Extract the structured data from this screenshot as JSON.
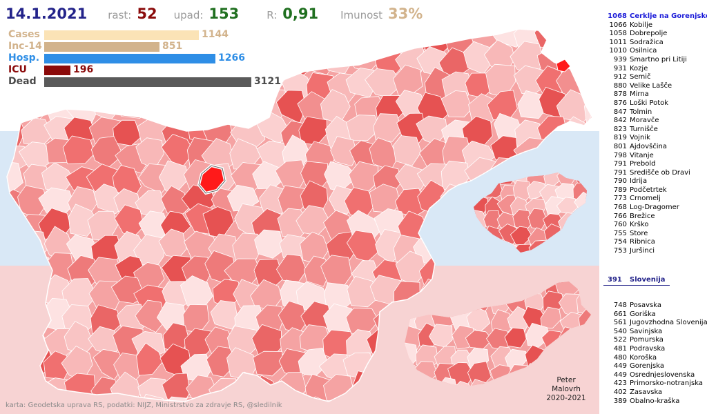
{
  "header": {
    "date": "14.1.2021",
    "rast_label": "rast:",
    "rast_value": "52",
    "upad_label": "upad:",
    "upad_value": "153",
    "r_label": "R:",
    "r_value": "0,91",
    "imunost_label": "Imunost",
    "imunost_value": "33%"
  },
  "stats": [
    {
      "label": "Cases",
      "value": "1144",
      "numeric": 1144,
      "color": "#fbe3b6",
      "label_color": "#d2b38c",
      "num_color": "#d2b38c"
    },
    {
      "label": "Inc-14",
      "value": "851",
      "numeric": 851,
      "color": "#d2b38c",
      "label_color": "#d2b38c",
      "num_color": "#d2b38c"
    },
    {
      "label": "Hosp.",
      "value": "1266",
      "numeric": 1266,
      "color": "#2e8ee6",
      "label_color": "#2e8ee6",
      "num_color": "#2e8ee6"
    },
    {
      "label": "ICU",
      "value": "196",
      "numeric": 196,
      "color": "#8b0a0a",
      "label_color": "#8b0a0a",
      "num_color": "#8b0a0a"
    },
    {
      "label": "Dead",
      "value": "3121",
      "numeric": 3121,
      "color": "#5a5a5a",
      "label_color": "#4a4a4a",
      "num_color": "#4a4a4a"
    }
  ],
  "municipalities": [
    {
      "value": "1068",
      "name": "Cerklje na Gorenjskem",
      "highlight": true
    },
    {
      "value": "1066",
      "name": "Kobilje"
    },
    {
      "value": "1058",
      "name": "Dobrepolje"
    },
    {
      "value": "1011",
      "name": "Sodražica"
    },
    {
      "value": "1010",
      "name": "Osilnica"
    },
    {
      "value": "939",
      "name": "Šmartno pri Litiji"
    },
    {
      "value": "931",
      "name": "Kozje"
    },
    {
      "value": "912",
      "name": "Semič"
    },
    {
      "value": "880",
      "name": "Velike Lašče"
    },
    {
      "value": "878",
      "name": "Mirna"
    },
    {
      "value": "876",
      "name": "Loški Potok"
    },
    {
      "value": "847",
      "name": "Tolmin"
    },
    {
      "value": "842",
      "name": "Moravče"
    },
    {
      "value": "823",
      "name": "Turnišče"
    },
    {
      "value": "819",
      "name": "Vojnik"
    },
    {
      "value": "801",
      "name": "Ajdovščina"
    },
    {
      "value": "798",
      "name": "Vitanje"
    },
    {
      "value": "791",
      "name": "Prebold"
    },
    {
      "value": "791",
      "name": "Središče ob Dravi"
    },
    {
      "value": "790",
      "name": "Idrija"
    },
    {
      "value": "789",
      "name": "Podčetrtek"
    },
    {
      "value": "773",
      "name": "Črnomelj"
    },
    {
      "value": "768",
      "name": "Log-Dragomer"
    },
    {
      "value": "766",
      "name": "Brežice"
    },
    {
      "value": "760",
      "name": "Krško"
    },
    {
      "value": "755",
      "name": "Štore"
    },
    {
      "value": "754",
      "name": "Ribnica"
    },
    {
      "value": "753",
      "name": "Juršinci"
    }
  ],
  "slovenia": {
    "value": "391",
    "name": "Slovenija"
  },
  "regions": [
    {
      "value": "748",
      "name": "Posavska"
    },
    {
      "value": "661",
      "name": "Goriška"
    },
    {
      "value": "561",
      "name": "Jugovzhodna Slovenija"
    },
    {
      "value": "540",
      "name": "Savinjska"
    },
    {
      "value": "522",
      "name": "Pomurska"
    },
    {
      "value": "481",
      "name": "Podravska"
    },
    {
      "value": "480",
      "name": "Koroška"
    },
    {
      "value": "449",
      "name": "Gorenjska"
    },
    {
      "value": "449",
      "name": "Osrednjeslovenska"
    },
    {
      "value": "423",
      "name": "Primorsko-notranjska"
    },
    {
      "value": "402",
      "name": "Zasavska"
    },
    {
      "value": "389",
      "name": "Obalno-kraška"
    }
  ],
  "credit": "karta: Geodetska uprava RS,  podatki: NIJZ, Ministrstvo za zdravje RS, @sledilnik",
  "author": [
    "Peter",
    "Malovrh",
    "2020-2021"
  ],
  "colors": {
    "low": "#fde0e0",
    "mid": "#f5a0a0",
    "high": "#ee5a5a",
    "max": "#ff1a1a",
    "border": "#ffffff",
    "band_blue": "#d9e8f6",
    "band_pink": "#f7d3d3"
  }
}
